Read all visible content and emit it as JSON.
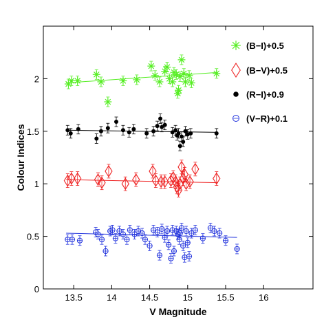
{
  "chart_data": {
    "type": "scatter",
    "title": "",
    "xlabel": "V Magnitude",
    "ylabel": "Colour Indices",
    "xlim": [
      13.1,
      16.65
    ],
    "ylim": [
      0,
      2.5
    ],
    "xticks": [
      "13.5",
      "14",
      "14.5",
      "15",
      "15.5",
      "16"
    ],
    "yticks": [
      "0",
      "0.5",
      "1",
      "1.5",
      "2"
    ],
    "legend_position": "top-right",
    "series": [
      {
        "name": "(B−I)+0.5",
        "marker": "asterisk",
        "color": "#55ee22",
        "points": [
          [
            13.43,
            1.95
          ],
          [
            13.47,
            1.98
          ],
          [
            13.55,
            1.98
          ],
          [
            13.8,
            2.04
          ],
          [
            13.86,
            1.97
          ],
          [
            13.95,
            1.78
          ],
          [
            14.15,
            1.98
          ],
          [
            14.33,
            1.99
          ],
          [
            14.52,
            2.12
          ],
          [
            14.57,
            2.03
          ],
          [
            14.63,
            1.97
          ],
          [
            14.7,
            2.07
          ],
          [
            14.73,
            2.11
          ],
          [
            14.76,
            2.0
          ],
          [
            14.8,
            1.97
          ],
          [
            14.82,
            2.06
          ],
          [
            14.85,
            2.04
          ],
          [
            14.87,
            1.86
          ],
          [
            14.88,
            1.89
          ],
          [
            14.9,
            2.02
          ],
          [
            14.92,
            2.18
          ],
          [
            14.95,
            2.05
          ],
          [
            14.97,
            1.97
          ],
          [
            15.02,
            2.03
          ],
          [
            15.05,
            1.96
          ],
          [
            15.38,
            2.05
          ]
        ],
        "fit": [
          [
            13.4,
            1.96
          ],
          [
            15.4,
            2.06
          ]
        ]
      },
      {
        "name": "(B−V)+0.5",
        "marker": "diamond",
        "color": "#ee2222",
        "points": [
          [
            13.42,
            1.03
          ],
          [
            13.47,
            1.05
          ],
          [
            13.55,
            1.05
          ],
          [
            13.82,
            1.04
          ],
          [
            13.87,
            1.01
          ],
          [
            13.96,
            1.12
          ],
          [
            14.18,
            1.0
          ],
          [
            14.32,
            1.04
          ],
          [
            14.54,
            1.12
          ],
          [
            14.58,
            1.03
          ],
          [
            14.65,
            1.02
          ],
          [
            14.7,
            1.02
          ],
          [
            14.78,
            1.03
          ],
          [
            14.81,
            1.06
          ],
          [
            14.84,
            1.02
          ],
          [
            14.86,
            0.97
          ],
          [
            14.88,
            0.94
          ],
          [
            14.9,
            1.0
          ],
          [
            14.92,
            1.16
          ],
          [
            14.94,
            1.05
          ],
          [
            14.96,
            1.09
          ],
          [
            14.98,
            1.0
          ],
          [
            15.03,
            1.02
          ],
          [
            15.1,
            1.14
          ],
          [
            15.38,
            1.05
          ]
        ],
        "fit": [
          [
            13.4,
            1.04
          ],
          [
            15.4,
            1.01
          ]
        ]
      },
      {
        "name": "(R−I)+0.9",
        "marker": "dot",
        "color": "#000000",
        "points": [
          [
            13.42,
            1.51
          ],
          [
            13.46,
            1.48
          ],
          [
            13.56,
            1.52
          ],
          [
            13.8,
            1.43
          ],
          [
            13.86,
            1.5
          ],
          [
            13.95,
            1.53
          ],
          [
            14.06,
            1.59
          ],
          [
            14.15,
            1.51
          ],
          [
            14.23,
            1.49
          ],
          [
            14.29,
            1.52
          ],
          [
            14.46,
            1.48
          ],
          [
            14.55,
            1.5
          ],
          [
            14.6,
            1.55
          ],
          [
            14.64,
            1.62
          ],
          [
            14.66,
            1.54
          ],
          [
            14.7,
            1.56
          ],
          [
            14.8,
            1.49
          ],
          [
            14.84,
            1.51
          ],
          [
            14.86,
            1.46
          ],
          [
            14.88,
            1.48
          ],
          [
            14.9,
            1.36
          ],
          [
            14.92,
            1.45
          ],
          [
            14.94,
            1.4
          ],
          [
            14.97,
            1.5
          ],
          [
            15.0,
            1.47
          ],
          [
            15.04,
            1.48
          ],
          [
            15.38,
            1.48
          ]
        ],
        "fit": [
          [
            13.4,
            1.51
          ],
          [
            15.4,
            1.49
          ]
        ]
      },
      {
        "name": "(V−R)+0.1",
        "marker": "open-circle",
        "color": "#2233dd",
        "points": [
          [
            13.42,
            0.47
          ],
          [
            13.48,
            0.47
          ],
          [
            13.58,
            0.46
          ],
          [
            13.79,
            0.54
          ],
          [
            13.82,
            0.52
          ],
          [
            13.87,
            0.47
          ],
          [
            13.92,
            0.36
          ],
          [
            13.98,
            0.55
          ],
          [
            14.01,
            0.56
          ],
          [
            14.05,
            0.48
          ],
          [
            14.1,
            0.55
          ],
          [
            14.15,
            0.52
          ],
          [
            14.2,
            0.47
          ],
          [
            14.24,
            0.56
          ],
          [
            14.3,
            0.52
          ],
          [
            14.35,
            0.55
          ],
          [
            14.4,
            0.53
          ],
          [
            14.44,
            0.47
          ],
          [
            14.5,
            0.41
          ],
          [
            14.55,
            0.56
          ],
          [
            14.6,
            0.54
          ],
          [
            14.63,
            0.32
          ],
          [
            14.66,
            0.57
          ],
          [
            14.7,
            0.49
          ],
          [
            14.73,
            0.55
          ],
          [
            14.75,
            0.42
          ],
          [
            14.78,
            0.29
          ],
          [
            14.8,
            0.56
          ],
          [
            14.82,
            0.36
          ],
          [
            14.85,
            0.55
          ],
          [
            14.87,
            0.52
          ],
          [
            14.89,
            0.47
          ],
          [
            14.9,
            0.53
          ],
          [
            14.92,
            0.58
          ],
          [
            14.94,
            0.41
          ],
          [
            14.96,
            0.3
          ],
          [
            14.98,
            0.55
          ],
          [
            15.0,
            0.44
          ],
          [
            15.02,
            0.31
          ],
          [
            15.05,
            0.53
          ],
          [
            15.1,
            0.56
          ],
          [
            15.2,
            0.48
          ],
          [
            15.3,
            0.58
          ],
          [
            15.35,
            0.55
          ],
          [
            15.42,
            0.53
          ],
          [
            15.5,
            0.46
          ],
          [
            15.65,
            0.38
          ]
        ],
        "fit": [
          [
            13.4,
            0.53
          ],
          [
            15.65,
            0.49
          ]
        ]
      }
    ]
  }
}
